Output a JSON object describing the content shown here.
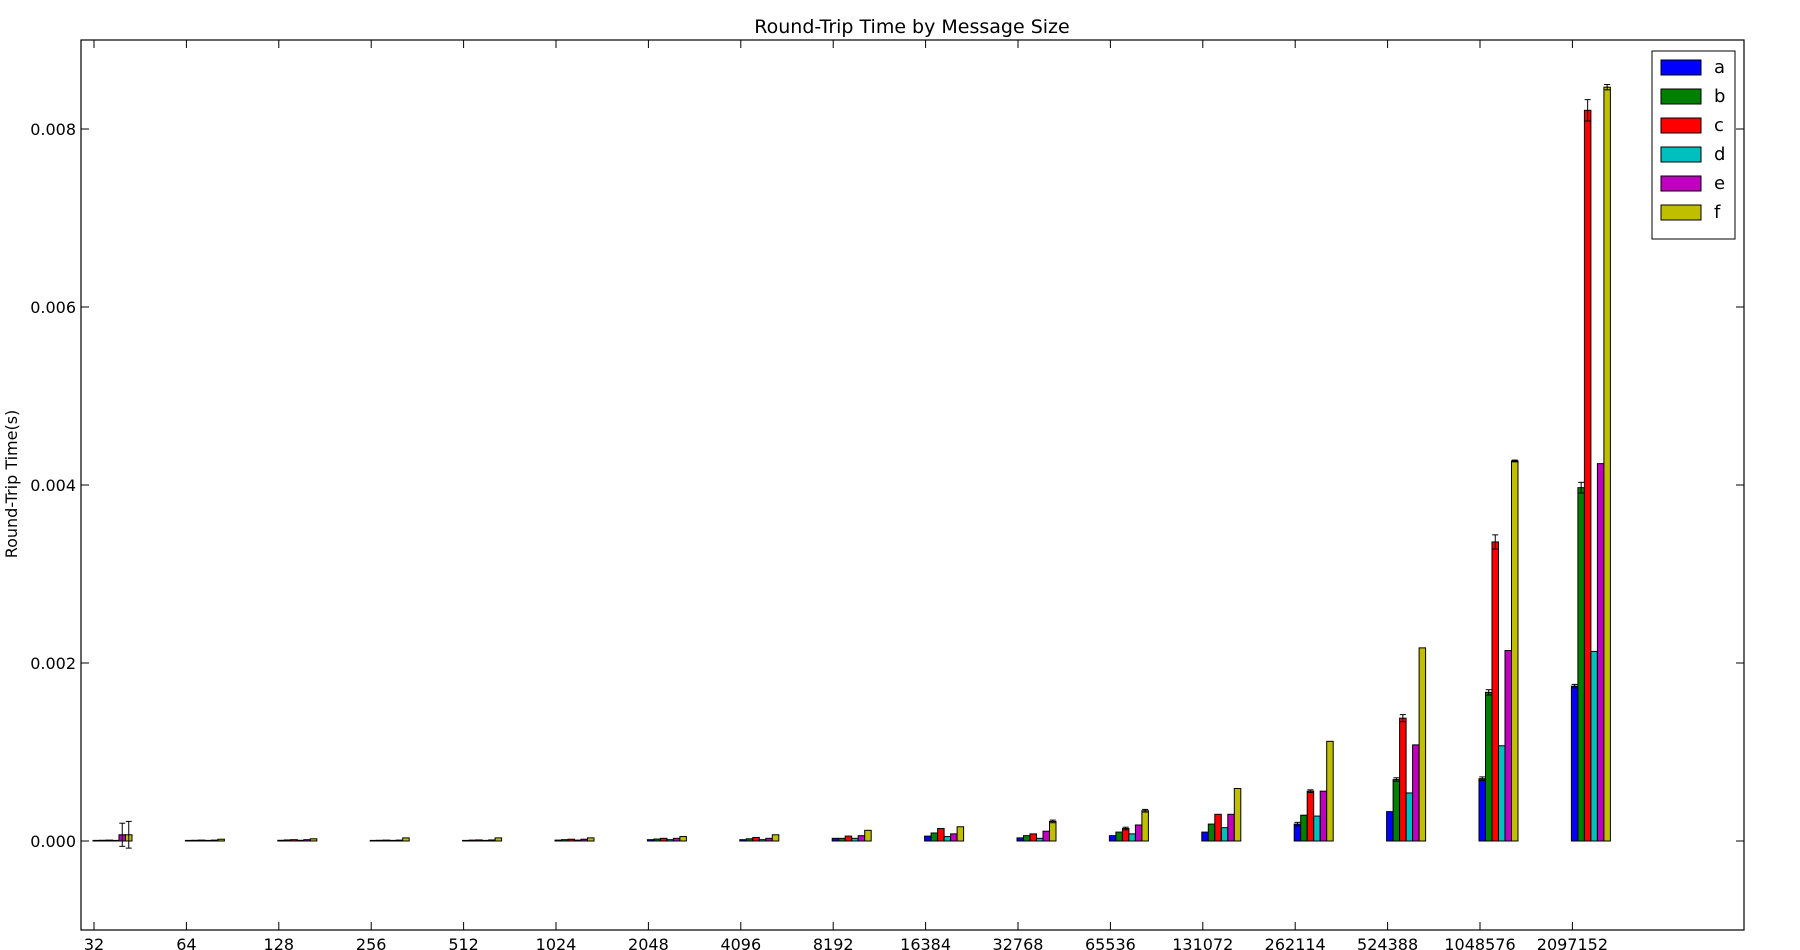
{
  "chart_data": {
    "type": "bar",
    "title": "Round-Trip Time by Message Size",
    "xlabel": "",
    "ylabel": "Round-Trip Time(s)",
    "ylim": [
      -0.001,
      0.009
    ],
    "yticks": [
      "0.000",
      "0.002",
      "0.004",
      "0.006",
      "0.008"
    ],
    "grid": false,
    "legend_position": "top-right",
    "categories": [
      "32",
      "64",
      "128",
      "256",
      "512",
      "1024",
      "2048",
      "4096",
      "8192",
      "16384",
      "32768",
      "65536",
      "131072",
      "262114",
      "524388",
      "1048576",
      "2097152"
    ],
    "series": [
      {
        "name": "a",
        "color": "#0000ff",
        "values": [
          5e-06,
          4e-06,
          8e-06,
          5e-06,
          6e-06,
          1e-05,
          1.5e-05,
          1.5e-05,
          3e-05,
          5.5e-05,
          3.5e-05,
          6e-05,
          0.0001,
          0.00019,
          0.00033,
          0.0007,
          0.00174
        ],
        "errors": [
          0,
          0,
          0,
          0,
          0,
          0,
          0,
          0,
          0,
          0,
          0,
          0,
          0,
          2e-05,
          0,
          2e-05,
          2e-05
        ]
      },
      {
        "name": "b",
        "color": "#008000",
        "values": [
          8e-06,
          8e-06,
          1.2e-05,
          8e-06,
          1e-05,
          1.5e-05,
          2.2e-05,
          2.5e-05,
          3e-05,
          9e-05,
          6e-05,
          0.0001,
          0.00019,
          0.00029,
          0.00069,
          0.00167,
          0.00397
        ],
        "errors": [
          0,
          0,
          0,
          0,
          0,
          0,
          0,
          0,
          0,
          0,
          0,
          0,
          0,
          0,
          2e-05,
          3e-05,
          6e-05
        ]
      },
      {
        "name": "c",
        "color": "#ff0000",
        "values": [
          1e-05,
          1e-05,
          1.5e-05,
          1e-05,
          1.2e-05,
          2e-05,
          3e-05,
          4e-05,
          5.5e-05,
          0.00014,
          8e-05,
          0.00014,
          0.0003,
          0.00056,
          0.00138,
          0.00336,
          0.00821
        ],
        "errors": [
          0,
          0,
          0,
          0,
          0,
          0,
          0,
          0,
          0,
          0,
          0,
          1.5e-05,
          0,
          1.5e-05,
          4e-05,
          8e-05,
          0.00012
        ]
      },
      {
        "name": "d",
        "color": "#00bfbf",
        "values": [
          6e-06,
          5e-06,
          8e-06,
          6e-06,
          7e-06,
          1e-05,
          1.5e-05,
          1.5e-05,
          3e-05,
          5e-05,
          3e-05,
          8e-05,
          0.00015,
          0.00028,
          0.00054,
          0.00107,
          0.00213
        ],
        "errors": [
          0,
          0,
          0,
          0,
          0,
          0,
          0,
          0,
          0,
          0,
          0,
          0,
          0,
          0,
          0,
          0,
          0
        ]
      },
      {
        "name": "e",
        "color": "#bf00bf",
        "values": [
          7e-05,
          1e-05,
          1.5e-05,
          1e-05,
          1.2e-05,
          2e-05,
          3e-05,
          3e-05,
          6e-05,
          8e-05,
          0.00011,
          0.00018,
          0.0003,
          0.00056,
          0.00108,
          0.00214,
          0.00424
        ],
        "errors": [
          0.00013,
          0,
          0,
          0,
          0,
          0,
          0,
          0,
          0,
          0,
          0,
          0,
          0,
          0,
          0,
          0,
          0
        ]
      },
      {
        "name": "f",
        "color": "#bfbf00",
        "values": [
          7e-05,
          2e-05,
          2.5e-05,
          3.5e-05,
          3.5e-05,
          3.5e-05,
          5e-05,
          7e-05,
          0.00012,
          0.00016,
          0.00022,
          0.00034,
          0.00059,
          0.00112,
          0.00217,
          0.00427,
          0.00847
        ],
        "errors": [
          0.00015,
          0,
          0,
          0,
          0,
          0,
          0,
          0,
          0,
          0,
          1.5e-05,
          1.5e-05,
          0,
          0,
          0,
          1e-05,
          3e-05
        ]
      }
    ]
  }
}
